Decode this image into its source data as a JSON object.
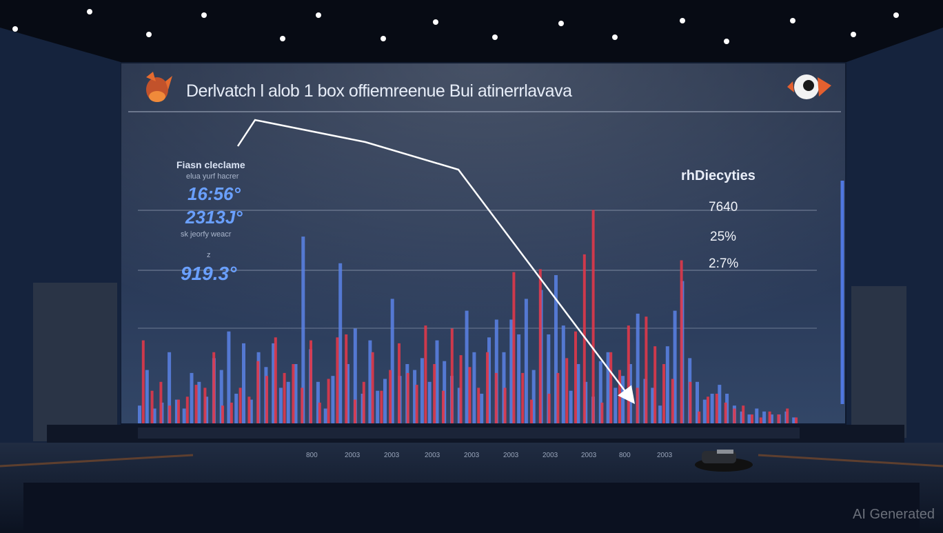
{
  "scene": {
    "title": "Derlvatch l alob 1 box offiemreenue Bui atinerrlavava",
    "left_panel": {
      "label1": "Fiasn cleclame",
      "label2": "elua yurf hacrer",
      "value1": "16:56°",
      "value2": "2313J°",
      "label3": "sk jeorfy weacr",
      "label4": "z",
      "value3": "919.3°"
    },
    "right_panel": {
      "title": "rhDiecyties",
      "value1": "7640",
      "value2": "25%",
      "value3": "2:7%"
    },
    "axis_ticks": [
      "800",
      "2003",
      "2003",
      "2003",
      "2003",
      "2003",
      "2003",
      "2003",
      "800",
      "2003"
    ],
    "watermark": "AI Generated"
  },
  "chart_data": {
    "type": "bar",
    "title": "Derlvatch l alob 1 box offiemreenue Bui atinerrlavava",
    "series": [
      {
        "color": "#5b83e6",
        "values": [
          6,
          18,
          5,
          7,
          24,
          8,
          5,
          17,
          14,
          9,
          22,
          18,
          31,
          10,
          27,
          8,
          24,
          19,
          27,
          12,
          14,
          20,
          63,
          25,
          14,
          5,
          16,
          54,
          20,
          32,
          10,
          28,
          11,
          15,
          42,
          16,
          20,
          18,
          22,
          14,
          28,
          21,
          16,
          12,
          38,
          24,
          10,
          29,
          35,
          24,
          35,
          30,
          42,
          18,
          45,
          30,
          50,
          33,
          11,
          20,
          14,
          9,
          21,
          24,
          12,
          16,
          20,
          37,
          15,
          12,
          6,
          26,
          38,
          48,
          22,
          14,
          8,
          10,
          13,
          10,
          6,
          4,
          3,
          5,
          4,
          3,
          3,
          4,
          2
        ]
      },
      {
        "color": "#e0394a",
        "values": [
          28,
          11,
          14,
          6,
          8,
          9,
          13,
          12,
          24,
          6,
          7,
          12,
          9,
          21,
          16,
          29,
          17,
          20,
          12,
          28,
          7,
          15,
          29,
          30,
          8,
          14,
          24,
          11,
          18,
          27,
          17,
          13,
          33,
          20,
          11,
          32,
          23,
          19,
          12,
          24,
          17,
          12,
          51,
          17,
          8,
          52,
          10,
          17,
          22,
          31,
          57,
          72,
          7,
          24,
          18,
          33,
          12,
          36,
          26,
          20,
          15,
          55,
          14,
          4,
          9,
          10,
          7,
          5,
          6,
          3,
          2,
          4,
          3,
          5,
          2
        ]
      }
    ],
    "annotations": [
      "trend-arrow"
    ],
    "grid": true
  }
}
